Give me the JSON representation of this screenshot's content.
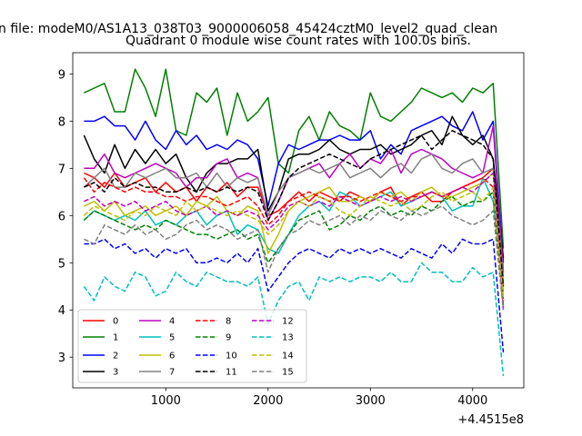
{
  "figure": {
    "suptitle": "n file: modeM0/AS1A13_038T03_9000006058_45424cztM0_level2_quad_clean",
    "title": "Quadrant 0 module wise count rates with 100.0s bins."
  },
  "chart_data": {
    "type": "line",
    "title": "Quadrant 0 module wise count rates with 100.0s bins.",
    "xlabel": "",
    "ylabel": "",
    "x_offset_label": "+4.4515e8",
    "x_offset": 445150000,
    "xlim": [
      90,
      4500
    ],
    "ylim": [
      2.35,
      9.45
    ],
    "x_ticks": [
      1000,
      2000,
      3000,
      4000
    ],
    "x_tick_labels": [
      "1000",
      "2000",
      "3000",
      "4000"
    ],
    "y_ticks": [
      3,
      4,
      5,
      6,
      7,
      8,
      9
    ],
    "y_tick_labels": [
      "3",
      "4",
      "5",
      "6",
      "7",
      "8",
      "9"
    ],
    "legend_position": "lower-left",
    "legend_columns": 4,
    "x": [
      200,
      300,
      400,
      500,
      600,
      700,
      800,
      900,
      1000,
      1100,
      1200,
      1300,
      1400,
      1500,
      1600,
      1700,
      1800,
      1900,
      2000,
      2100,
      2200,
      2300,
      2400,
      2500,
      2600,
      2700,
      2800,
      2900,
      3000,
      3100,
      3200,
      3300,
      3400,
      3500,
      3600,
      3700,
      3800,
      3900,
      4000,
      4100,
      4200,
      4300
    ],
    "series": [
      {
        "name": "0",
        "color": "#ff0000",
        "dash": "solid",
        "values": [
          6.9,
          6.8,
          6.6,
          6.9,
          6.6,
          6.7,
          6.8,
          6.5,
          6.7,
          6.5,
          6.6,
          6.3,
          6.6,
          6.5,
          6.7,
          6.4,
          6.6,
          6.6,
          6.0,
          6.1,
          6.3,
          6.5,
          6.3,
          6.5,
          6.4,
          6.3,
          6.5,
          6.4,
          6.3,
          6.5,
          6.6,
          6.2,
          6.4,
          6.5,
          6.3,
          6.3,
          6.5,
          6.6,
          6.7,
          6.8,
          7.0,
          4.5
        ]
      },
      {
        "name": "1",
        "color": "#008000",
        "dash": "solid",
        "values": [
          8.6,
          8.7,
          8.8,
          8.2,
          8.2,
          9.1,
          8.7,
          8.1,
          9.1,
          7.8,
          7.7,
          8.6,
          8.4,
          8.7,
          7.7,
          8.6,
          8.0,
          8.2,
          8.5,
          7.1,
          6.9,
          7.8,
          8.1,
          7.6,
          8.2,
          7.9,
          7.8,
          7.6,
          8.6,
          8.1,
          8.0,
          8.2,
          8.4,
          8.7,
          8.6,
          8.5,
          8.6,
          8.4,
          8.7,
          8.6,
          8.8,
          5.3
        ]
      },
      {
        "name": "2",
        "color": "#0000ff",
        "dash": "solid",
        "values": [
          8.0,
          8.0,
          8.1,
          7.9,
          7.9,
          7.6,
          8.0,
          7.6,
          7.4,
          7.8,
          7.5,
          7.7,
          7.4,
          7.5,
          7.4,
          7.6,
          7.5,
          7.2,
          6.2,
          7.1,
          7.5,
          7.4,
          7.5,
          7.6,
          7.6,
          7.7,
          7.6,
          7.6,
          7.8,
          7.2,
          7.5,
          7.3,
          7.8,
          7.9,
          8.0,
          8.1,
          7.9,
          7.8,
          8.2,
          7.6,
          8.0,
          5.0
        ]
      },
      {
        "name": "3",
        "color": "#000000",
        "dash": "solid",
        "values": [
          7.7,
          7.2,
          6.9,
          7.5,
          7.0,
          7.4,
          7.1,
          7.4,
          7.1,
          7.3,
          6.8,
          6.5,
          6.9,
          7.1,
          7.1,
          7.2,
          7.2,
          7.4,
          6.1,
          6.5,
          7.2,
          7.3,
          7.3,
          7.4,
          7.6,
          7.4,
          7.3,
          7.4,
          7.4,
          7.5,
          7.3,
          7.4,
          7.5,
          7.7,
          7.8,
          7.5,
          8.1,
          7.7,
          7.5,
          7.7,
          7.2,
          5.1
        ]
      },
      {
        "name": "4",
        "color": "#bf00bf",
        "dash": "solid",
        "values": [
          7.0,
          7.0,
          7.3,
          6.9,
          6.8,
          6.9,
          7.0,
          7.1,
          7.0,
          6.9,
          6.6,
          6.8,
          6.8,
          7.1,
          7.2,
          6.8,
          6.9,
          6.8,
          5.9,
          6.3,
          6.8,
          6.9,
          7.0,
          7.1,
          6.8,
          7.1,
          7.3,
          7.0,
          7.2,
          7.1,
          7.4,
          6.9,
          7.3,
          7.4,
          7.3,
          7.2,
          7.0,
          6.9,
          6.8,
          6.9,
          7.9,
          4.8
        ]
      },
      {
        "name": "5",
        "color": "#00bfbf",
        "dash": "solid",
        "values": [
          5.9,
          6.1,
          6.0,
          5.9,
          6.0,
          5.9,
          6.1,
          5.8,
          5.9,
          5.8,
          6.0,
          6.1,
          5.8,
          6.0,
          6.1,
          5.6,
          5.8,
          5.7,
          5.3,
          5.2,
          5.6,
          6.0,
          6.2,
          6.3,
          6.1,
          6.5,
          6.4,
          6.2,
          6.3,
          6.4,
          6.5,
          6.2,
          6.3,
          6.4,
          6.5,
          6.4,
          6.1,
          6.2,
          6.2,
          6.8,
          6.3,
          4.4
        ]
      },
      {
        "name": "6",
        "color": "#bfbf00",
        "dash": "solid",
        "values": [
          6.2,
          6.3,
          6.1,
          6.3,
          6.0,
          6.1,
          6.2,
          6.0,
          6.1,
          6.2,
          6.0,
          6.3,
          6.2,
          6.4,
          6.1,
          6.0,
          6.2,
          6.1,
          5.2,
          5.6,
          6.1,
          6.3,
          6.4,
          6.5,
          6.6,
          6.3,
          6.3,
          6.4,
          6.3,
          6.5,
          6.4,
          6.5,
          6.3,
          6.5,
          6.6,
          6.4,
          6.4,
          6.5,
          6.6,
          6.7,
          6.9,
          4.3
        ]
      },
      {
        "name": "7",
        "color": "#808080",
        "dash": "solid",
        "values": [
          6.6,
          6.8,
          7.0,
          6.6,
          6.6,
          6.9,
          6.8,
          6.9,
          7.0,
          6.8,
          6.8,
          6.9,
          6.6,
          6.9,
          6.6,
          6.8,
          6.7,
          6.8,
          6.0,
          6.5,
          6.8,
          6.9,
          7.0,
          6.9,
          7.0,
          7.1,
          6.8,
          6.9,
          7.0,
          6.8,
          7.0,
          7.1,
          6.9,
          7.2,
          7.3,
          7.0,
          6.9,
          7.1,
          7.2,
          6.9,
          7.0,
          4.7
        ]
      },
      {
        "name": "8",
        "color": "#ff0000",
        "dash": "dashed",
        "values": [
          6.8,
          6.5,
          6.7,
          6.6,
          6.5,
          6.6,
          6.5,
          6.5,
          6.4,
          6.4,
          6.3,
          6.4,
          6.4,
          6.3,
          6.2,
          6.3,
          6.4,
          6.2,
          5.8,
          6.0,
          6.3,
          6.4,
          6.5,
          6.4,
          6.3,
          6.4,
          6.4,
          6.3,
          6.4,
          6.5,
          6.4,
          6.3,
          6.4,
          6.4,
          6.5,
          6.4,
          6.5,
          6.6,
          6.7,
          6.8,
          6.6,
          4.2
        ]
      },
      {
        "name": "9",
        "color": "#008000",
        "dash": "dashed",
        "values": [
          5.9,
          6.1,
          6.0,
          5.9,
          5.8,
          5.7,
          5.8,
          5.7,
          5.9,
          5.8,
          5.7,
          5.6,
          5.6,
          5.5,
          5.6,
          5.7,
          5.5,
          5.6,
          5.0,
          5.3,
          5.6,
          5.9,
          6.0,
          6.1,
          5.7,
          5.8,
          6.0,
          5.9,
          6.1,
          6.2,
          6.0,
          6.1,
          6.0,
          6.2,
          6.1,
          6.3,
          6.4,
          6.2,
          6.3,
          6.3,
          6.5,
          4.1
        ]
      },
      {
        "name": "10",
        "color": "#0000ff",
        "dash": "dashed",
        "values": [
          5.4,
          5.4,
          5.5,
          5.3,
          5.4,
          5.2,
          5.3,
          5.1,
          5.3,
          5.2,
          5.3,
          5.0,
          5.0,
          5.1,
          5.0,
          5.2,
          5.0,
          5.3,
          4.4,
          4.7,
          5.0,
          5.2,
          5.3,
          5.2,
          5.1,
          5.3,
          5.2,
          5.3,
          5.2,
          5.3,
          5.2,
          5.1,
          5.3,
          5.2,
          5.1,
          5.4,
          5.2,
          5.5,
          5.4,
          5.4,
          5.5,
          3.1
        ]
      },
      {
        "name": "11",
        "color": "#000000",
        "dash": "dashed",
        "values": [
          6.6,
          6.7,
          6.5,
          6.8,
          6.6,
          6.7,
          6.6,
          6.6,
          6.5,
          6.5,
          6.6,
          6.5,
          6.6,
          6.5,
          6.6,
          6.5,
          6.6,
          6.5,
          5.9,
          6.3,
          6.8,
          7.0,
          7.1,
          7.2,
          7.3,
          7.2,
          7.1,
          7.0,
          7.2,
          7.3,
          7.4,
          7.5,
          7.6,
          7.7,
          7.4,
          7.6,
          7.8,
          7.7,
          7.6,
          7.5,
          7.2,
          4.5
        ]
      },
      {
        "name": "12",
        "color": "#bf00bf",
        "dash": "dashed",
        "values": [
          6.3,
          6.4,
          6.2,
          6.3,
          6.2,
          6.3,
          6.1,
          6.2,
          6.3,
          6.1,
          6.0,
          6.1,
          6.2,
          6.0,
          6.1,
          6.0,
          6.1,
          6.0,
          5.7,
          5.9,
          6.2,
          6.3,
          6.2,
          6.3,
          6.2,
          6.4,
          6.3,
          6.2,
          6.3,
          6.4,
          6.3,
          6.4,
          6.3,
          6.4,
          6.5,
          6.4,
          6.5,
          6.6,
          6.5,
          6.7,
          6.9,
          4.0
        ]
      },
      {
        "name": "13",
        "color": "#00bfbf",
        "dash": "dashed",
        "values": [
          4.5,
          4.2,
          4.7,
          4.5,
          4.4,
          4.8,
          4.7,
          4.3,
          4.4,
          4.8,
          4.6,
          4.5,
          4.8,
          4.7,
          4.6,
          4.6,
          4.5,
          4.7,
          3.7,
          4.2,
          4.5,
          4.6,
          4.2,
          4.7,
          4.6,
          4.7,
          4.6,
          4.7,
          4.7,
          4.6,
          4.8,
          4.6,
          4.6,
          5.0,
          4.8,
          4.8,
          4.6,
          4.6,
          4.9,
          4.7,
          4.8,
          2.6
        ]
      },
      {
        "name": "14",
        "color": "#bfbf00",
        "dash": "dashed",
        "values": [
          6.0,
          6.2,
          6.1,
          6.0,
          5.9,
          6.1,
          6.0,
          6.2,
          6.1,
          6.0,
          6.3,
          6.1,
          6.2,
          6.1,
          6.0,
          6.1,
          6.0,
          5.9,
          5.6,
          5.8,
          6.1,
          6.3,
          6.2,
          6.4,
          6.3,
          6.1,
          6.0,
          6.2,
          6.4,
          6.3,
          6.2,
          6.3,
          6.1,
          6.2,
          6.4,
          6.5,
          6.3,
          6.4,
          6.5,
          6.3,
          6.6,
          4.2
        ]
      },
      {
        "name": "15",
        "color": "#808080",
        "dash": "dashed",
        "values": [
          5.5,
          5.4,
          5.8,
          5.7,
          5.6,
          5.8,
          5.6,
          5.7,
          5.5,
          5.6,
          5.8,
          5.9,
          5.7,
          5.8,
          5.7,
          5.5,
          5.6,
          5.7,
          4.8,
          5.3,
          5.6,
          5.7,
          5.9,
          5.8,
          5.9,
          6.0,
          5.8,
          6.0,
          5.9,
          6.1,
          6.0,
          5.9,
          6.1,
          6.0,
          6.1,
          6.2,
          6.0,
          5.9,
          5.8,
          5.9,
          6.1,
          4.0
        ]
      }
    ]
  }
}
